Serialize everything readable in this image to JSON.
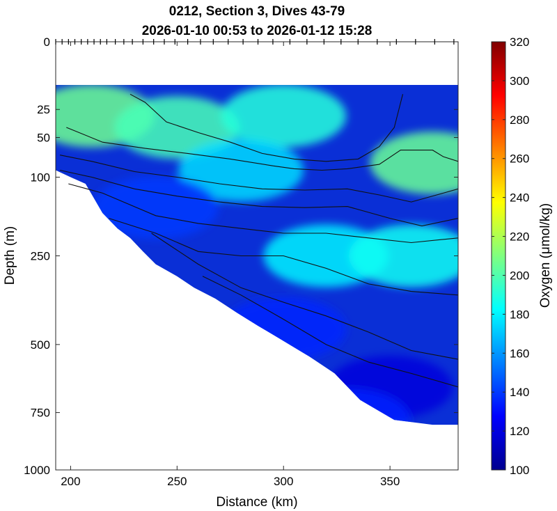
{
  "chart_data": {
    "type": "heatmap",
    "title": "0212, Section 3, Dives 43-79",
    "subtitle": "2026-01-10 00:53 to 2026-01-12 15:28",
    "xlabel": "Distance (km)",
    "ylabel": "Depth (m)",
    "colorbar_label": "Oxygen (μmol/kg)",
    "xlim": [
      193,
      382
    ],
    "ylim": [
      0,
      1000
    ],
    "y_scale": "square-root",
    "x_ticks": [
      200,
      250,
      300,
      350
    ],
    "y_ticks": [
      0,
      25,
      50,
      100,
      250,
      500,
      750,
      1000
    ],
    "colorbar_ticks": [
      100,
      120,
      140,
      160,
      180,
      200,
      220,
      240,
      260,
      280,
      300,
      320
    ],
    "clim": [
      100,
      320
    ],
    "colormap": "jet",
    "grid": false,
    "dive_marks_x": [
      193,
      196,
      199,
      202,
      205,
      208,
      211,
      214,
      217,
      221,
      225,
      229,
      234,
      239,
      244,
      249,
      255,
      261,
      267,
      274,
      281,
      288,
      295,
      303,
      311,
      319,
      327,
      335,
      344,
      353,
      362,
      371,
      380
    ],
    "field_samples": [
      {
        "x": 210,
        "depth": 30,
        "oxygen": 206
      },
      {
        "x": 250,
        "depth": 40,
        "oxygen": 198
      },
      {
        "x": 300,
        "depth": 30,
        "oxygen": 190
      },
      {
        "x": 370,
        "depth": 80,
        "oxygen": 205
      },
      {
        "x": 280,
        "depth": 90,
        "oxygen": 175
      },
      {
        "x": 240,
        "depth": 150,
        "oxygen": 140
      },
      {
        "x": 320,
        "depth": 250,
        "oxygen": 180
      },
      {
        "x": 360,
        "depth": 250,
        "oxygen": 185
      },
      {
        "x": 300,
        "depth": 450,
        "oxygen": 135
      },
      {
        "x": 350,
        "depth": 650,
        "oxygen": 120
      },
      {
        "x": 330,
        "depth": 780,
        "oxygen": 135
      }
    ],
    "contour_lines": [
      [
        [
          228,
          15
        ],
        [
          235,
          20
        ],
        [
          245,
          35
        ],
        [
          260,
          45
        ],
        [
          275,
          55
        ],
        [
          290,
          68
        ],
        [
          305,
          75
        ],
        [
          320,
          78
        ],
        [
          335,
          75
        ],
        [
          345,
          60
        ],
        [
          352,
          40
        ],
        [
          356,
          15
        ]
      ],
      [
        [
          198,
          40
        ],
        [
          215,
          55
        ],
        [
          235,
          62
        ],
        [
          255,
          68
        ],
        [
          275,
          75
        ],
        [
          295,
          84
        ],
        [
          305,
          88
        ],
        [
          318,
          90
        ],
        [
          330,
          88
        ],
        [
          345,
          82
        ],
        [
          355,
          64
        ],
        [
          370,
          64
        ],
        [
          375,
          72
        ],
        [
          382,
          78
        ]
      ],
      [
        [
          195,
          70
        ],
        [
          210,
          78
        ],
        [
          230,
          92
        ],
        [
          250,
          100
        ],
        [
          270,
          110
        ],
        [
          290,
          118
        ],
        [
          310,
          120
        ],
        [
          330,
          118
        ],
        [
          345,
          128
        ],
        [
          360,
          140
        ],
        [
          375,
          125
        ],
        [
          382,
          118
        ]
      ],
      [
        [
          195,
          90
        ],
        [
          210,
          100
        ],
        [
          230,
          118
        ],
        [
          250,
          130
        ],
        [
          270,
          140
        ],
        [
          290,
          148
        ],
        [
          310,
          150
        ],
        [
          330,
          148
        ],
        [
          350,
          170
        ],
        [
          365,
          185
        ],
        [
          382,
          170
        ]
      ],
      [
        [
          199,
          110
        ],
        [
          215,
          125
        ],
        [
          240,
          165
        ],
        [
          260,
          180
        ],
        [
          280,
          190
        ],
        [
          300,
          200
        ],
        [
          320,
          200
        ],
        [
          340,
          210
        ],
        [
          360,
          220
        ],
        [
          382,
          210
        ]
      ],
      [
        [
          218,
          170
        ],
        [
          240,
          200
        ],
        [
          260,
          240
        ],
        [
          280,
          250
        ],
        [
          300,
          250
        ],
        [
          320,
          280
        ],
        [
          340,
          320
        ],
        [
          360,
          340
        ],
        [
          382,
          350
        ]
      ],
      [
        [
          238,
          200
        ],
        [
          260,
          270
        ],
        [
          280,
          330
        ],
        [
          300,
          370
        ],
        [
          320,
          410
        ],
        [
          340,
          460
        ],
        [
          360,
          520
        ],
        [
          382,
          550
        ]
      ],
      [
        [
          262,
          300
        ],
        [
          280,
          350
        ],
        [
          300,
          420
        ],
        [
          320,
          500
        ],
        [
          340,
          560
        ],
        [
          360,
          600
        ],
        [
          382,
          650
        ]
      ]
    ]
  }
}
